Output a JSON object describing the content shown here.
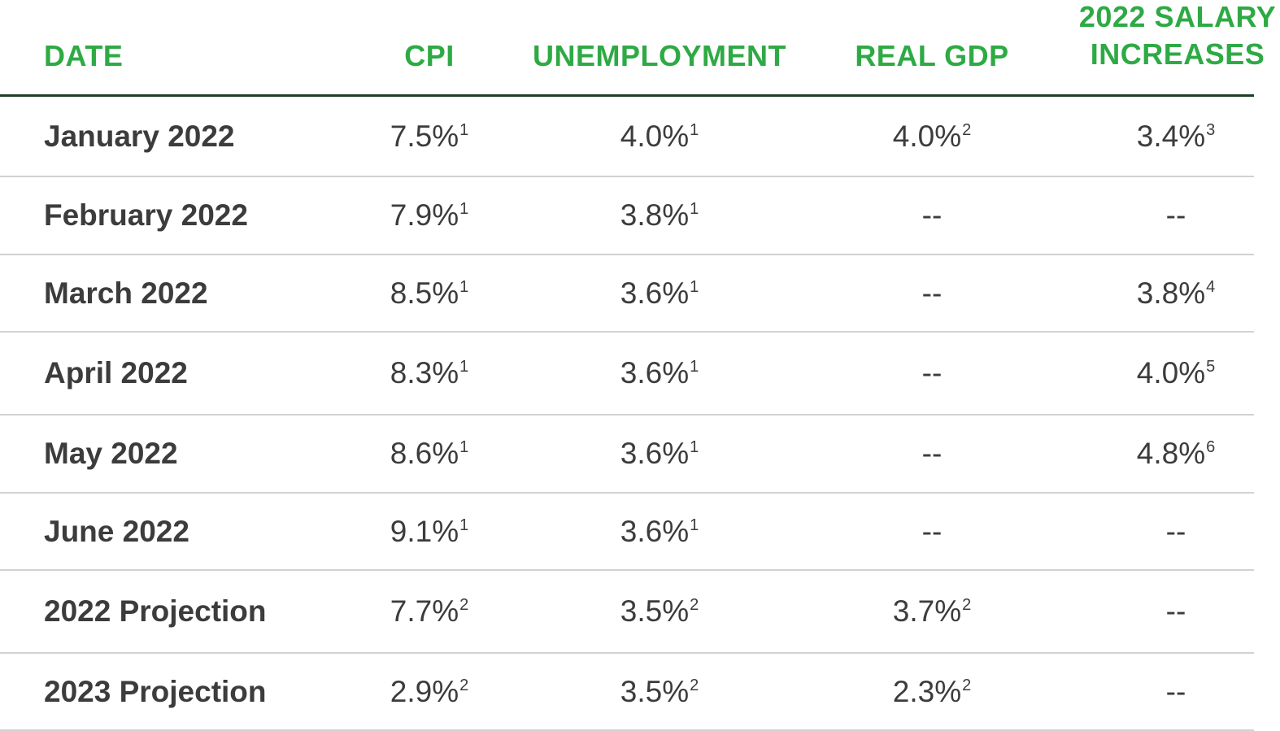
{
  "table": {
    "headers": {
      "date": "DATE",
      "cpi": "CPI",
      "unemployment": "UNEMPLOYMENT",
      "real_gdp": "REAL GDP",
      "salary_line1": "2022 SALARY",
      "salary_line2": "INCREASES"
    },
    "rows": [
      {
        "date": "January 2022",
        "cpi": {
          "value": "7.5%",
          "note": "1"
        },
        "unemployment": {
          "value": "4.0%",
          "note": "1"
        },
        "real_gdp": {
          "value": "4.0%",
          "note": "2"
        },
        "salary": {
          "value": "3.4%",
          "note": "3"
        }
      },
      {
        "date": "February 2022",
        "cpi": {
          "value": "7.9%",
          "note": "1"
        },
        "unemployment": {
          "value": "3.8%",
          "note": "1"
        },
        "real_gdp": {
          "value": "--",
          "note": ""
        },
        "salary": {
          "value": "--",
          "note": ""
        }
      },
      {
        "date": "March 2022",
        "cpi": {
          "value": "8.5%",
          "note": "1"
        },
        "unemployment": {
          "value": "3.6%",
          "note": "1"
        },
        "real_gdp": {
          "value": "--",
          "note": ""
        },
        "salary": {
          "value": "3.8%",
          "note": "4"
        }
      },
      {
        "date": "April 2022",
        "cpi": {
          "value": "8.3%",
          "note": "1"
        },
        "unemployment": {
          "value": "3.6%",
          "note": "1"
        },
        "real_gdp": {
          "value": "--",
          "note": ""
        },
        "salary": {
          "value": "4.0%",
          "note": "5"
        }
      },
      {
        "date": "May 2022",
        "cpi": {
          "value": "8.6%",
          "note": "1"
        },
        "unemployment": {
          "value": "3.6%",
          "note": "1"
        },
        "real_gdp": {
          "value": "--",
          "note": ""
        },
        "salary": {
          "value": "4.8%",
          "note": "6"
        }
      },
      {
        "date": "June 2022",
        "cpi": {
          "value": "9.1%",
          "note": "1"
        },
        "unemployment": {
          "value": "3.6%",
          "note": "1"
        },
        "real_gdp": {
          "value": "--",
          "note": ""
        },
        "salary": {
          "value": "--",
          "note": ""
        }
      },
      {
        "date": "2022 Projection",
        "cpi": {
          "value": "7.7%",
          "note": "2"
        },
        "unemployment": {
          "value": "3.5%",
          "note": "2"
        },
        "real_gdp": {
          "value": "3.7%",
          "note": "2"
        },
        "salary": {
          "value": "--",
          "note": ""
        }
      },
      {
        "date": "2023 Projection",
        "cpi": {
          "value": "2.9%",
          "note": "2"
        },
        "unemployment": {
          "value": "3.5%",
          "note": "2"
        },
        "real_gdp": {
          "value": "2.3%",
          "note": "2"
        },
        "salary": {
          "value": "--",
          "note": ""
        }
      }
    ]
  },
  "colors": {
    "header_text": "#2eaa44",
    "header_rule": "#1f3f24",
    "row_text": "#3c3c3c",
    "row_rule": "#d2d2d2"
  }
}
